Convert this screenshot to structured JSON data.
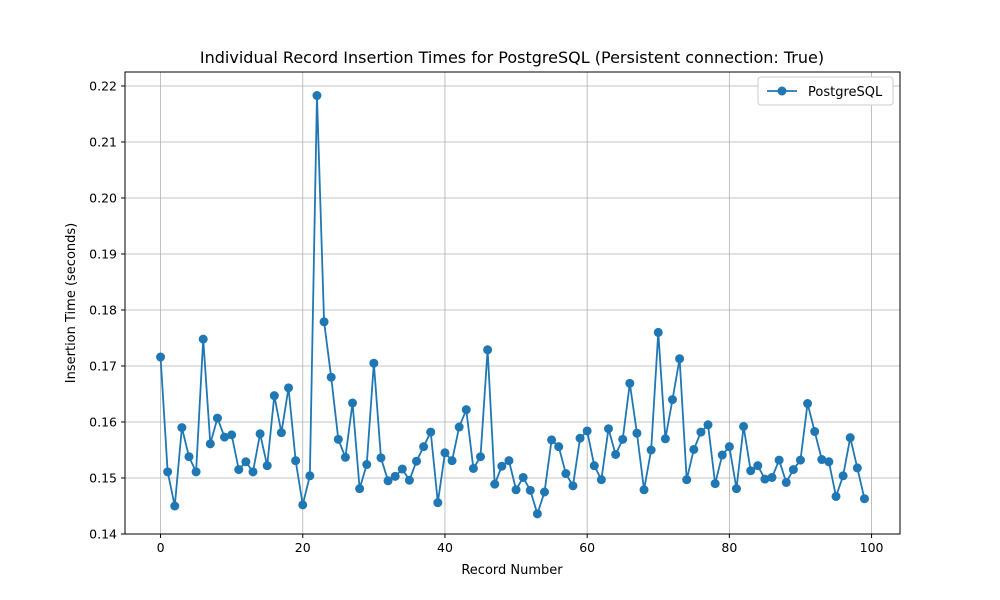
{
  "chart_data": {
    "type": "line",
    "title": "Individual Record Insertion Times for PostgreSQL (Persistent connection: True)",
    "xlabel": "Record Number",
    "ylabel": "Insertion Time (seconds)",
    "xlim": [
      -5,
      104
    ],
    "ylim": [
      0.14,
      0.2225
    ],
    "x_ticks": [
      0,
      20,
      40,
      60,
      80,
      100
    ],
    "x_tick_labels": [
      "0",
      "20",
      "40",
      "60",
      "80",
      "100"
    ],
    "y_ticks": [
      0.14,
      0.15,
      0.16,
      0.17,
      0.18,
      0.19,
      0.2,
      0.21,
      0.22
    ],
    "y_tick_labels": [
      "0.14",
      "0.15",
      "0.16",
      "0.17",
      "0.18",
      "0.19",
      "0.20",
      "0.21",
      "0.22"
    ],
    "grid": true,
    "legend_position": "top-right",
    "series": [
      {
        "name": "PostgreSQL",
        "color": "#1f77b4",
        "marker": "circle",
        "x": [
          0,
          1,
          2,
          3,
          4,
          5,
          6,
          7,
          8,
          9,
          10,
          11,
          12,
          13,
          14,
          15,
          16,
          17,
          18,
          19,
          20,
          21,
          22,
          23,
          24,
          25,
          26,
          27,
          28,
          29,
          30,
          31,
          32,
          33,
          34,
          35,
          36,
          37,
          38,
          39,
          40,
          41,
          42,
          43,
          44,
          45,
          46,
          47,
          48,
          49,
          50,
          51,
          52,
          53,
          54,
          55,
          56,
          57,
          58,
          59,
          60,
          61,
          62,
          63,
          64,
          65,
          66,
          67,
          68,
          69,
          70,
          71,
          72,
          73,
          74,
          75,
          76,
          77,
          78,
          79,
          80,
          81,
          82,
          83,
          84,
          85,
          86,
          87,
          88,
          89,
          90,
          91,
          92,
          93,
          94,
          95,
          96,
          97,
          98,
          99
        ],
        "y": [
          0.1716,
          0.1511,
          0.145,
          0.159,
          0.1538,
          0.1511,
          0.1748,
          0.1561,
          0.1607,
          0.1573,
          0.1577,
          0.1515,
          0.1529,
          0.1511,
          0.1579,
          0.1522,
          0.1647,
          0.1581,
          0.1661,
          0.1531,
          0.1452,
          0.1504,
          0.2183,
          0.1779,
          0.168,
          0.1569,
          0.1537,
          0.1634,
          0.1481,
          0.1524,
          0.1705,
          0.1536,
          0.1495,
          0.1503,
          0.1516,
          0.1496,
          0.153,
          0.1556,
          0.1582,
          0.1456,
          0.1545,
          0.1531,
          0.1591,
          0.1622,
          0.1517,
          0.1538,
          0.1729,
          0.1489,
          0.1521,
          0.1531,
          0.1479,
          0.1501,
          0.1478,
          0.1436,
          0.1475,
          0.1568,
          0.1556,
          0.1508,
          0.1486,
          0.1571,
          0.1584,
          0.1522,
          0.1497,
          0.1588,
          0.1542,
          0.1569,
          0.1669,
          0.158,
          0.1479,
          0.155,
          0.176,
          0.157,
          0.164,
          0.1713,
          0.1497,
          0.1551,
          0.1582,
          0.1595,
          0.149,
          0.1541,
          0.1556,
          0.1481,
          0.1592,
          0.1513,
          0.1522,
          0.1498,
          0.1501,
          0.1532,
          0.1492,
          0.1515,
          0.1532,
          0.1633,
          0.1583,
          0.1533,
          0.1529,
          0.1467,
          0.1504,
          0.1572,
          0.1518,
          0.1463
        ]
      }
    ]
  }
}
